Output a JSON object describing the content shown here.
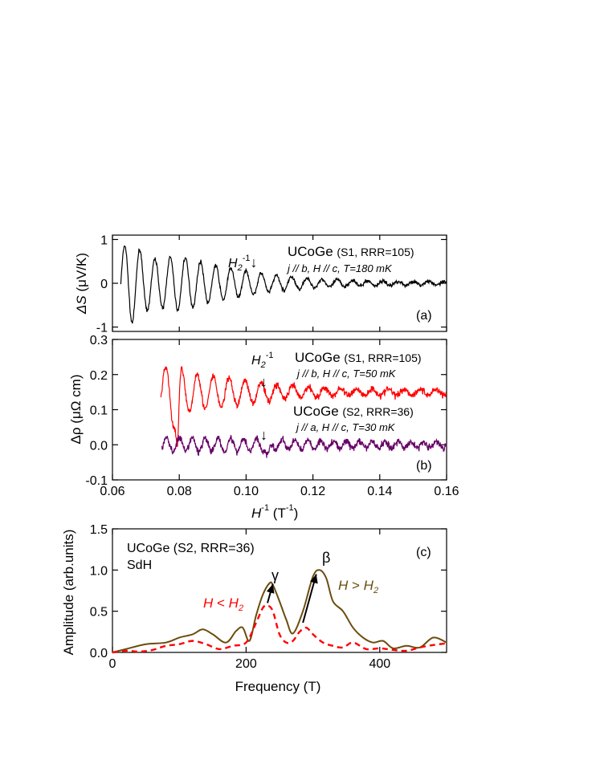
{
  "chart_data": [
    {
      "type": "line",
      "panel_label": "(a)",
      "ylabel_symbol": "ΔS",
      "ylabel_unit": "(μV/K)",
      "xlim": [
        0.06,
        0.16
      ],
      "ylim": [
        -1.1,
        1.1
      ],
      "yticks": [
        "1",
        "0",
        "-1"
      ],
      "ytick_values": [
        1,
        0,
        -1
      ],
      "annotation": {
        "label": "H",
        "sub": "2",
        "sup": "-1",
        "arrow": "↓",
        "x": 0.106
      },
      "sample_title": {
        "main": "UCoGe",
        "detail": "(S1, RRR=105)"
      },
      "conditions": "j // b, H // c, T=180 mK",
      "series": [
        {
          "color": "#000000",
          "start": 0.0625,
          "end": 0.16,
          "envelope": [
            [
              0.062,
              0.75
            ],
            [
              0.065,
              0.95
            ],
            [
              0.072,
              0.55
            ],
            [
              0.08,
              0.62
            ],
            [
              0.09,
              0.42
            ],
            [
              0.1,
              0.28
            ],
            [
              0.11,
              0.17
            ],
            [
              0.12,
              0.1
            ],
            [
              0.14,
              0.05
            ],
            [
              0.16,
              0.04
            ]
          ],
          "noise": 0.03
        }
      ]
    },
    {
      "type": "line",
      "panel_label": "(b)",
      "ylabel_symbol": "Δρ",
      "ylabel_unit": "(μΩ cm)",
      "xlabel": "H",
      "xlabel_sup": "-1",
      "xlabel_unit": "(T",
      "xlabel_unit_sup": "-1",
      "xlabel_close": ")",
      "xlim": [
        0.06,
        0.16
      ],
      "ylim": [
        -0.1,
        0.3
      ],
      "xticks": [
        "0.06",
        "0.08",
        "0.10",
        "0.12",
        "0.14",
        "0.16"
      ],
      "xtick_values": [
        0.06,
        0.08,
        0.1,
        0.12,
        0.14,
        0.16
      ],
      "yticks": [
        "0.3",
        "0.2",
        "0.1",
        "0.0",
        "-0.1"
      ],
      "ytick_values": [
        0.3,
        0.2,
        0.1,
        0.0,
        -0.1
      ],
      "annotation_top": {
        "label": "H",
        "sub": "2",
        "sup": "-1",
        "arrow": "↓",
        "x": 0.106
      },
      "annotation_bottom": {
        "arrow": "↓",
        "x": 0.1055
      },
      "sample_s1": {
        "main": "UCoGe",
        "detail": "(S1, RRR=105)",
        "conditions": "j // b, H // c, T=50 mK"
      },
      "sample_s2": {
        "main": "UCoGe",
        "detail": "(S2, RRR=36)",
        "conditions": "j // a, H // c, T=30 mK"
      },
      "series": [
        {
          "name_ref": "S1",
          "color": "#ff0000",
          "baseline": 0.15,
          "start": 0.0745,
          "end": 0.16,
          "envelope": [
            [
              0.075,
              0.06
            ],
            [
              0.078,
              0.1
            ],
            [
              0.082,
              0.06
            ],
            [
              0.09,
              0.045
            ],
            [
              0.1,
              0.035
            ],
            [
              0.11,
              0.02
            ],
            [
              0.13,
              0.01
            ],
            [
              0.16,
              0.008
            ]
          ],
          "noise": 0.007
        },
        {
          "name_ref": "S2",
          "color": "#660066",
          "baseline": 0.0,
          "start": 0.0748,
          "end": 0.16,
          "envelope": [
            [
              0.075,
              0.02
            ],
            [
              0.09,
              0.02
            ],
            [
              0.1,
              0.018
            ],
            [
              0.12,
              0.012
            ],
            [
              0.16,
              0.008
            ]
          ],
          "noise": 0.007
        }
      ]
    },
    {
      "type": "line",
      "panel_label": "(c)",
      "ylabel": "Amplitude  (arb.units)",
      "xlabel": "Frequency (T)",
      "xlim": [
        0,
        500
      ],
      "ylim": [
        0,
        1.5
      ],
      "xticks": [
        "0",
        "200",
        "400"
      ],
      "xtick_values": [
        0,
        200,
        400
      ],
      "yticks": [
        "1.5",
        "1.0",
        "0.5",
        "0.0"
      ],
      "ytick_values": [
        1.5,
        1.0,
        0.5,
        0.0
      ],
      "sample_title": "UCoGe (S2, RRR=36)",
      "method": "SdH",
      "peak_gamma": "γ",
      "peak_beta": "β",
      "label_low": {
        "H": "H",
        "rel": " < ",
        "H2": "H",
        "sub": "2"
      },
      "label_high": {
        "H": "H",
        "rel": " > ",
        "H2": "H",
        "sub": "2"
      },
      "series": [
        {
          "ref": "H > H2",
          "color": "#6b4c0c",
          "style": "solid",
          "x": [
            0,
            20,
            50,
            80,
            100,
            120,
            135,
            150,
            170,
            185,
            195,
            205,
            215,
            225,
            235,
            240,
            250,
            260,
            270,
            285,
            300,
            310,
            320,
            330,
            345,
            360,
            375,
            390,
            405,
            420,
            440,
            460,
            480,
            500
          ],
          "y": [
            0.0,
            0.04,
            0.1,
            0.12,
            0.18,
            0.22,
            0.28,
            0.22,
            0.12,
            0.26,
            0.3,
            0.14,
            0.45,
            0.7,
            0.84,
            0.82,
            0.62,
            0.4,
            0.23,
            0.5,
            0.92,
            1.0,
            0.9,
            0.62,
            0.5,
            0.3,
            0.18,
            0.12,
            0.14,
            0.05,
            0.08,
            0.06,
            0.18,
            0.12
          ]
        },
        {
          "ref": "H < H2",
          "color": "#ff0000",
          "style": "dashed",
          "x": [
            0,
            20,
            40,
            60,
            80,
            100,
            120,
            140,
            160,
            180,
            200,
            215,
            225,
            232,
            240,
            250,
            260,
            270,
            280,
            290,
            300,
            315,
            330,
            345,
            360,
            380,
            400,
            420,
            440,
            460,
            480,
            500
          ],
          "y": [
            0.0,
            0.02,
            0.01,
            0.03,
            0.08,
            0.1,
            0.14,
            0.1,
            0.04,
            0.08,
            0.12,
            0.36,
            0.54,
            0.57,
            0.5,
            0.22,
            0.12,
            0.14,
            0.25,
            0.3,
            0.22,
            0.12,
            0.08,
            0.06,
            0.12,
            0.04,
            0.05,
            0.03,
            0.02,
            0.06,
            0.09,
            0.11
          ]
        }
      ]
    }
  ]
}
